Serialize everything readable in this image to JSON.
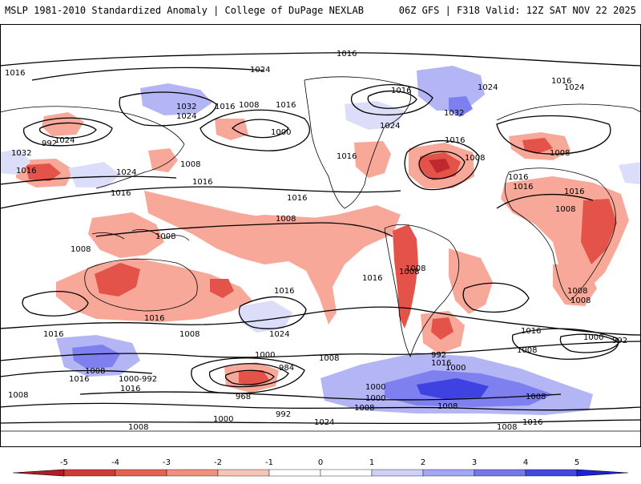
{
  "header": {
    "left": "MSLP 1981-2010 Standardized Anomaly | College of DuPage NEXLAB",
    "right": "06Z GFS | F318 Valid: 12Z SAT NOV 22 2025"
  },
  "colors": {
    "neg_strong": "#c0282f",
    "neg_mid": "#e4534a",
    "neg_light": "#f7a898",
    "neg_faint": "#fbd2c8",
    "pos_faint": "#dcddf9",
    "pos_light": "#b3b5f4",
    "pos_mid": "#7d80ee",
    "pos_strong": "#3d42e0",
    "contour": "#000000",
    "coast": "#000000"
  },
  "isobar_labels": [
    {
      "key": "a1",
      "text": "1016"
    },
    {
      "key": "a2",
      "text": "1024"
    },
    {
      "key": "a3",
      "text": "1032"
    },
    {
      "key": "a4",
      "text": "1024"
    },
    {
      "key": "a5",
      "text": "1016"
    },
    {
      "key": "a6",
      "text": "1008"
    },
    {
      "key": "a7",
      "text": "1016"
    },
    {
      "key": "a8",
      "text": "1000"
    },
    {
      "key": "a9",
      "text": "1016"
    },
    {
      "key": "a10",
      "text": "1016"
    },
    {
      "key": "a11",
      "text": "1024"
    },
    {
      "key": "a12",
      "text": "1016"
    },
    {
      "key": "a13",
      "text": "1024"
    },
    {
      "key": "a14",
      "text": "1032"
    },
    {
      "key": "a15",
      "text": "1008"
    },
    {
      "key": "a16",
      "text": "1016"
    },
    {
      "key": "a17",
      "text": "1016"
    },
    {
      "key": "a18",
      "text": "1008"
    },
    {
      "key": "a19",
      "text": "1016"
    },
    {
      "key": "a20",
      "text": "1024"
    },
    {
      "key": "a21",
      "text": "1032"
    },
    {
      "key": "a22",
      "text": "1016"
    },
    {
      "key": "a23",
      "text": "1024"
    },
    {
      "key": "a24",
      "text": "1016"
    },
    {
      "key": "a25",
      "text": "1008"
    },
    {
      "key": "a26",
      "text": "1016"
    },
    {
      "key": "a27",
      "text": "1008"
    },
    {
      "key": "a28",
      "text": "1016"
    },
    {
      "key": "a29",
      "text": "1016"
    },
    {
      "key": "a30",
      "text": "1008"
    },
    {
      "key": "a31",
      "text": "1008"
    },
    {
      "key": "a32",
      "text": "1008"
    },
    {
      "key": "a33",
      "text": "1016"
    },
    {
      "key": "a34",
      "text": "1016"
    },
    {
      "key": "a35",
      "text": "1016"
    },
    {
      "key": "a36",
      "text": "1008"
    },
    {
      "key": "a37",
      "text": "1008"
    },
    {
      "key": "a38",
      "text": "1024"
    },
    {
      "key": "a39",
      "text": "1016"
    },
    {
      "key": "a40",
      "text": "1016"
    },
    {
      "key": "a41",
      "text": "1008"
    },
    {
      "key": "a42",
      "text": "1000"
    },
    {
      "key": "a43",
      "text": "992"
    },
    {
      "key": "a44",
      "text": "1000"
    },
    {
      "key": "a45",
      "text": "1008"
    },
    {
      "key": "a46",
      "text": "1016"
    },
    {
      "key": "a47",
      "text": "1008"
    },
    {
      "key": "a48",
      "text": "1008"
    },
    {
      "key": "a49",
      "text": "1000"
    },
    {
      "key": "a50",
      "text": "984"
    },
    {
      "key": "a51",
      "text": "1000"
    },
    {
      "key": "a52",
      "text": "1008"
    },
    {
      "key": "a53",
      "text": "992"
    },
    {
      "key": "a54",
      "text": "1000"
    },
    {
      "key": "a55",
      "text": "1008"
    },
    {
      "key": "a56",
      "text": "1016"
    },
    {
      "key": "a57",
      "text": "1000-992"
    },
    {
      "key": "a58",
      "text": "1016"
    },
    {
      "key": "a59",
      "text": "968"
    },
    {
      "key": "a60",
      "text": "992"
    },
    {
      "key": "a61",
      "text": "1008"
    },
    {
      "key": "a62",
      "text": "1008"
    },
    {
      "key": "a63",
      "text": "1000"
    },
    {
      "key": "a64",
      "text": "1008"
    },
    {
      "key": "a65",
      "text": "1008"
    },
    {
      "key": "a66",
      "text": "1024"
    },
    {
      "key": "a67",
      "text": "1008"
    },
    {
      "key": "a68",
      "text": "1016"
    },
    {
      "key": "a69",
      "text": "1024"
    },
    {
      "key": "a70",
      "text": "1016"
    },
    {
      "key": "a71",
      "text": "992"
    },
    {
      "key": "a72",
      "text": "1008"
    }
  ],
  "colorbar": {
    "ticks": [
      "-5",
      "-4",
      "-3",
      "-2",
      "-1",
      "0",
      "1",
      "2",
      "3",
      "4",
      "5"
    ],
    "colors": [
      "#b01e24",
      "#d2393a",
      "#e76152",
      "#f28f7f",
      "#f9c4b8",
      "#ffffff",
      "#ffffff",
      "#cfd0f7",
      "#a4a6f2",
      "#7478ec",
      "#4247e2",
      "#1c22d8"
    ]
  }
}
